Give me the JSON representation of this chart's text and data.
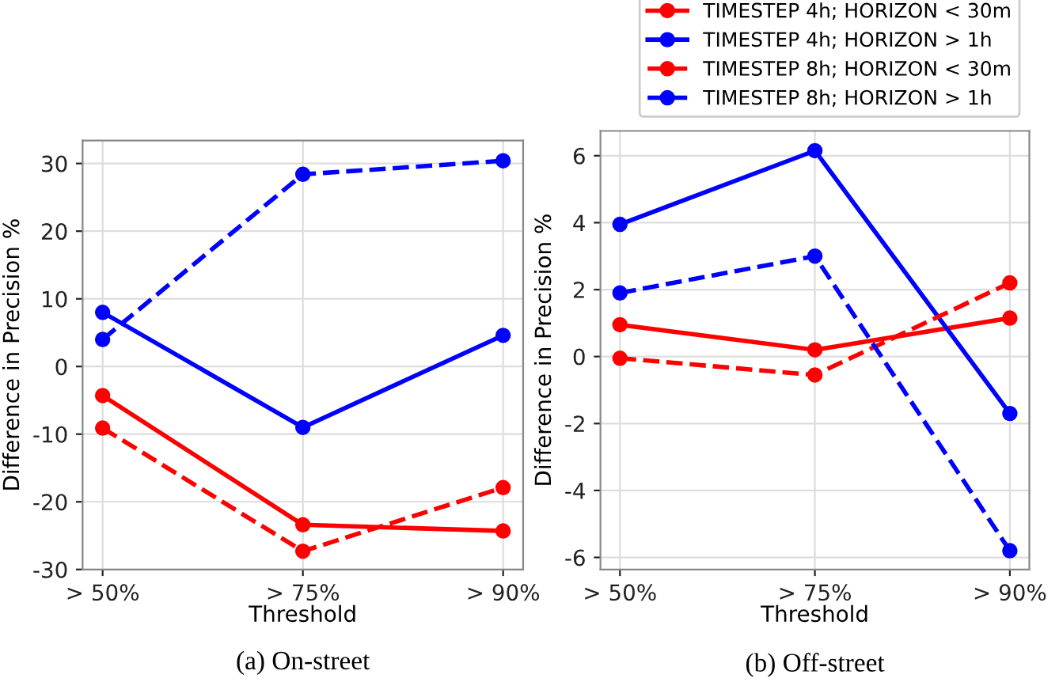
{
  "chart_data": [
    {
      "type": "line",
      "title": "(a) On-street",
      "xlabel": "Threshold",
      "ylabel": "Difference in Precision %",
      "categories": [
        "> 50%",
        "> 75%",
        "> 90%"
      ],
      "ylim": [
        -30,
        33.4
      ],
      "yticks": [
        -30,
        -20,
        -10,
        0,
        10,
        20,
        30
      ],
      "grid": true,
      "marker": "circle",
      "legend": false,
      "series": [
        {
          "color": "#ff0000",
          "line_style": "solid",
          "values": [
            -4.3,
            -23.4,
            -24.3
          ]
        },
        {
          "color": "#0000ff",
          "line_style": "solid",
          "values": [
            8,
            -9,
            4.6
          ]
        },
        {
          "color": "#ff0000",
          "line_style": "dashed",
          "values": [
            -9.1,
            -27.3,
            -17.9
          ]
        },
        {
          "color": "#0000ff",
          "line_style": "dashed",
          "values": [
            4,
            28.4,
            30.4
          ]
        }
      ]
    },
    {
      "type": "line",
      "title": "(b) Off-street",
      "xlabel": "Threshold",
      "ylabel": "Difference in Precision %",
      "categories": [
        "> 50%",
        "> 75%",
        "> 90%"
      ],
      "ylim": [
        -6.36,
        6.74
      ],
      "yticks": [
        -6,
        -4,
        -2,
        0,
        2,
        4,
        6
      ],
      "grid": true,
      "marker": "circle",
      "legend": "top",
      "series": [
        {
          "name": "TIMESTEP 4h; HORIZON < 30m",
          "color": "#ff0000",
          "line_style": "solid",
          "values": [
            0.95,
            0.2,
            1.15
          ]
        },
        {
          "name": "TIMESTEP 4h; HORIZON > 1h",
          "color": "#0000ff",
          "line_style": "solid",
          "values": [
            3.95,
            6.15,
            -1.7
          ]
        },
        {
          "name": "TIMESTEP 8h; HORIZON < 30m",
          "color": "#ff0000",
          "line_style": "dashed",
          "values": [
            -0.05,
            -0.55,
            2.2
          ]
        },
        {
          "name": "TIMESTEP 8h; HORIZON > 1h",
          "color": "#0000ff",
          "line_style": "dashed",
          "values": [
            1.9,
            3.0,
            -5.8
          ]
        }
      ]
    }
  ]
}
